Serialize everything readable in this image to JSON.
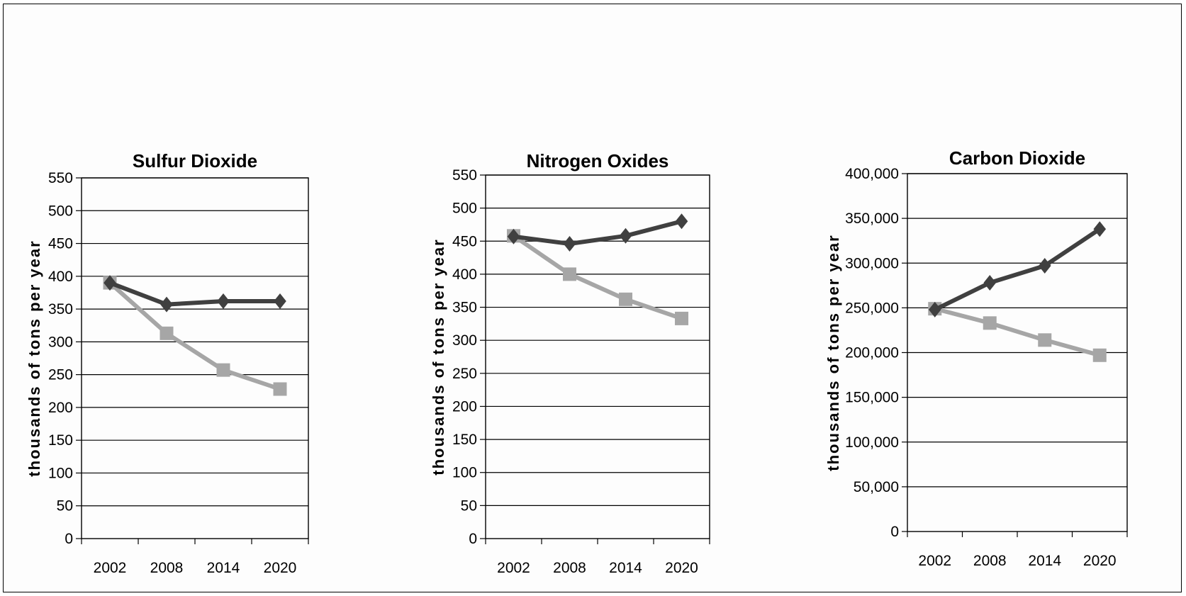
{
  "chart_data": [
    {
      "type": "line",
      "title": "Sulfur Dioxide",
      "ylabel": "thousands of tons per year",
      "categories": [
        "2002",
        "2008",
        "2014",
        "2020"
      ],
      "ylim": [
        0,
        550
      ],
      "yticks": [
        0,
        50,
        100,
        150,
        200,
        250,
        300,
        350,
        400,
        450,
        500,
        550
      ],
      "ytick_labels": [
        "0",
        "50",
        "100",
        "150",
        "200",
        "250",
        "300",
        "350",
        "400",
        "450",
        "500",
        "550"
      ],
      "grid": true,
      "series": [
        {
          "marker": "diamond",
          "color": "#404040",
          "values": [
            390,
            357,
            362,
            362
          ]
        },
        {
          "marker": "square",
          "color": "#a6a6a6",
          "values": [
            390,
            313,
            257,
            228
          ]
        }
      ]
    },
    {
      "type": "line",
      "title": "Nitrogen Oxides",
      "ylabel": "thousands of tons per year",
      "categories": [
        "2002",
        "2008",
        "2014",
        "2020"
      ],
      "ylim": [
        0,
        550
      ],
      "yticks": [
        0,
        50,
        100,
        150,
        200,
        250,
        300,
        350,
        400,
        450,
        500,
        550
      ],
      "ytick_labels": [
        "0",
        "50",
        "100",
        "150",
        "200",
        "250",
        "300",
        "350",
        "400",
        "450",
        "500",
        "550"
      ],
      "grid": true,
      "series": [
        {
          "marker": "diamond",
          "color": "#404040",
          "values": [
            457,
            446,
            458,
            480
          ]
        },
        {
          "marker": "square",
          "color": "#a6a6a6",
          "values": [
            458,
            400,
            362,
            333
          ]
        }
      ]
    },
    {
      "type": "line",
      "title": "Carbon Dioxide",
      "ylabel": "thousands of tons per year",
      "categories": [
        "2002",
        "2008",
        "2014",
        "2020"
      ],
      "ylim": [
        0,
        400000
      ],
      "yticks": [
        0,
        50000,
        100000,
        150000,
        200000,
        250000,
        300000,
        350000,
        400000
      ],
      "ytick_labels": [
        "0",
        "50,000",
        "100,000",
        "150,000",
        "200,000",
        "250,000",
        "300,000",
        "350,000",
        "400,000"
      ],
      "grid": true,
      "series": [
        {
          "marker": "diamond",
          "color": "#404040",
          "values": [
            248000,
            278000,
            297000,
            338000
          ]
        },
        {
          "marker": "square",
          "color": "#a6a6a6",
          "values": [
            249000,
            233000,
            214000,
            197000
          ]
        }
      ]
    }
  ]
}
